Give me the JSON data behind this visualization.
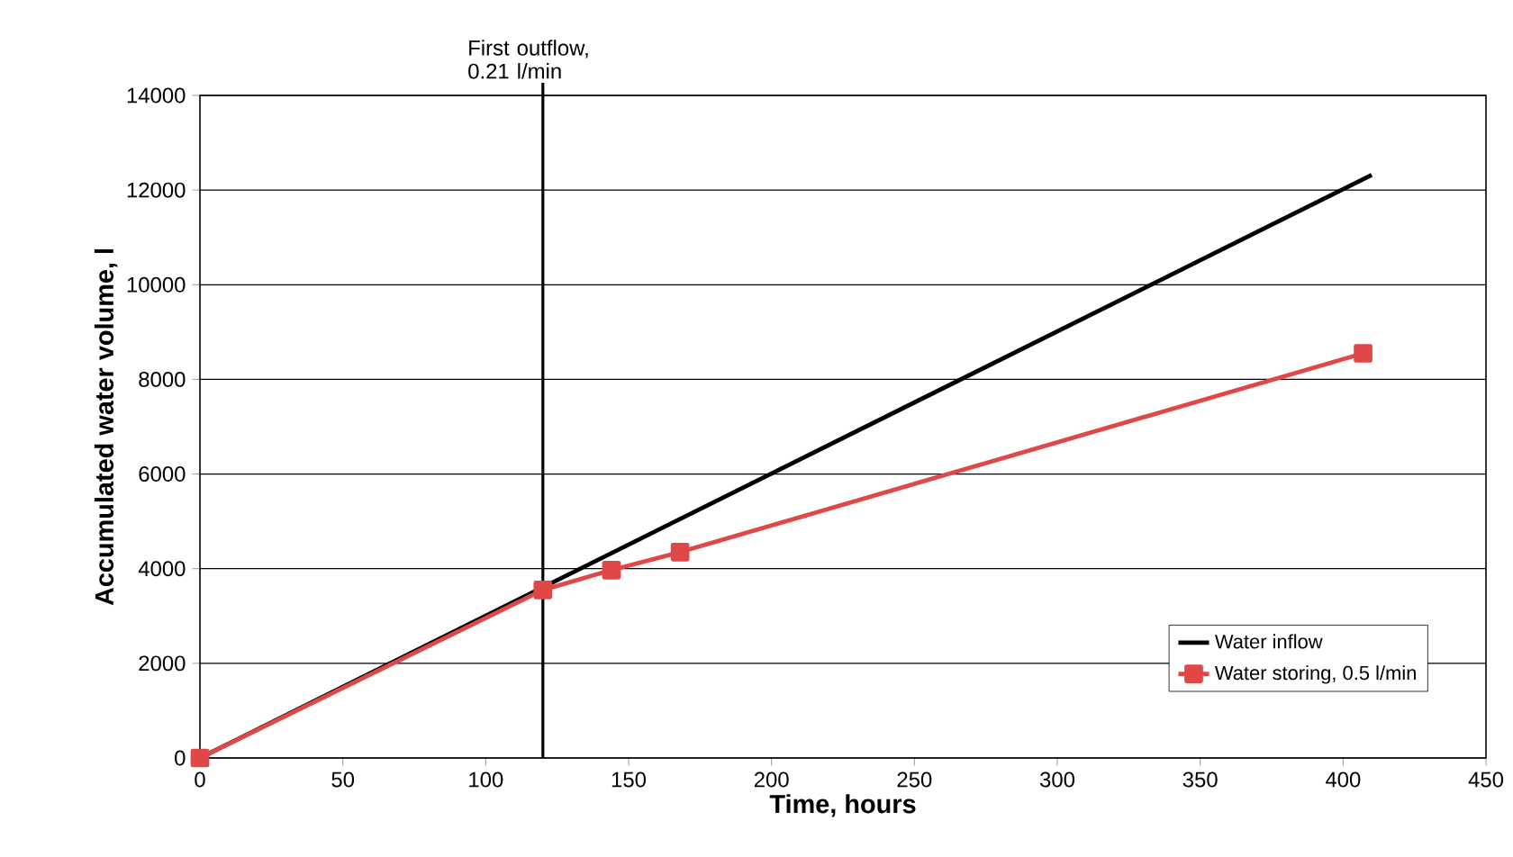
{
  "chart_data": {
    "type": "line",
    "xlabel": "Time, hours",
    "ylabel": "Accumulated water volume, l",
    "series": [
      {
        "name": "Water inflow",
        "color": "#000000",
        "marker": "none",
        "x": [
          0,
          410
        ],
        "values": [
          0,
          12320
        ]
      },
      {
        "name": "Water storing, 0.5 l/min",
        "color": "#e04848",
        "marker": "square",
        "x": [
          0,
          120,
          144,
          168,
          407
        ],
        "values": [
          0,
          3550,
          3970,
          4350,
          8550
        ]
      }
    ],
    "xlim": [
      0,
      450
    ],
    "xticks": [
      0,
      50,
      100,
      150,
      200,
      250,
      300,
      350,
      400,
      450
    ],
    "ylim": [
      0,
      14000
    ],
    "yticks": [
      0,
      2000,
      4000,
      6000,
      8000,
      10000,
      12000,
      14000
    ],
    "grid": "y",
    "legend": "bottom right",
    "ref_lines": [
      {
        "axis": "x",
        "value": 120,
        "label": "First outflow, 0.21 l/min",
        "color": "#000000"
      }
    ]
  }
}
